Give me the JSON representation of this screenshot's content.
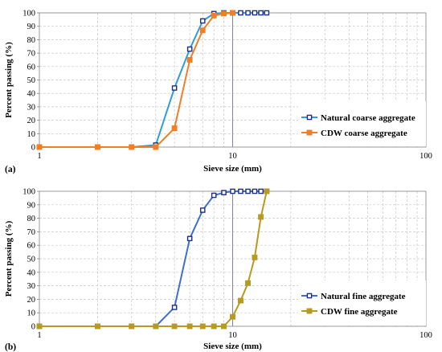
{
  "chart_data": [
    {
      "type": "line",
      "panel_label": "(a)",
      "xlabel": "Sieve size (mm)",
      "ylabel": "Percent passing (%)",
      "xscale": "log",
      "xlim": [
        1,
        100
      ],
      "ylim": [
        0,
        100
      ],
      "x_ticks": [
        "1",
        "10",
        "100"
      ],
      "y_ticks": [
        "0",
        "10",
        "20",
        "30",
        "40",
        "50",
        "60",
        "70",
        "80",
        "90",
        "100"
      ],
      "grid": "dashed",
      "reference_line_x": 10,
      "legend_position": "right",
      "series": [
        {
          "name": "Natural coarse aggregate",
          "color": "#2e9ed6",
          "marker": "hollow-square",
          "marker_color": "#1f2d8a",
          "points": [
            [
              1,
              0
            ],
            [
              2,
              0
            ],
            [
              3,
              0
            ],
            [
              4,
              1.5
            ],
            [
              5,
              44
            ],
            [
              6,
              73
            ],
            [
              7,
              94
            ],
            [
              8,
              99.5
            ],
            [
              9,
              100
            ],
            [
              10,
              100
            ],
            [
              11,
              100
            ],
            [
              12,
              100
            ],
            [
              13,
              100
            ],
            [
              14,
              100
            ],
            [
              15,
              100
            ]
          ]
        },
        {
          "name": "CDW coarse aggregate",
          "color": "#f07f25",
          "marker": "filled-square",
          "marker_color": "#f07f25",
          "points": [
            [
              1,
              0
            ],
            [
              2,
              0
            ],
            [
              3,
              0
            ],
            [
              4,
              0
            ],
            [
              5,
              14
            ],
            [
              6,
              65
            ],
            [
              7,
              87
            ],
            [
              8,
              98
            ],
            [
              9,
              99.5
            ],
            [
              10,
              100
            ]
          ]
        }
      ]
    },
    {
      "type": "line",
      "panel_label": "(b)",
      "xlabel": "Sieve size (mm)",
      "ylabel": "Percent passing (%)",
      "xscale": "log",
      "xlim": [
        1,
        100
      ],
      "ylim": [
        0,
        100
      ],
      "x_ticks": [
        "1",
        "10",
        "100"
      ],
      "y_ticks": [
        "0",
        "10",
        "20",
        "30",
        "40",
        "50",
        "60",
        "70",
        "80",
        "90",
        "100"
      ],
      "grid": "dashed",
      "reference_line_x": 10,
      "legend_position": "right",
      "series": [
        {
          "name": "Natural fine aggregate",
          "color": "#3b6fd0",
          "marker": "hollow-square",
          "marker_color": "#1f2d8a",
          "points": [
            [
              1,
              0
            ],
            [
              2,
              0
            ],
            [
              3,
              0
            ],
            [
              4,
              0
            ],
            [
              5,
              14
            ],
            [
              6,
              65
            ],
            [
              7,
              86
            ],
            [
              8,
              97
            ],
            [
              9,
              99
            ],
            [
              10,
              100
            ],
            [
              11,
              100
            ],
            [
              12,
              100
            ],
            [
              13,
              100
            ],
            [
              14,
              100
            ],
            [
              15,
              100
            ]
          ]
        },
        {
          "name": "CDW fine aggregate",
          "color": "#b89a1e",
          "marker": "filled-square",
          "marker_color": "#b89a1e",
          "points": [
            [
              1,
              0
            ],
            [
              2,
              0
            ],
            [
              3,
              0
            ],
            [
              4,
              0
            ],
            [
              5,
              0
            ],
            [
              6,
              0
            ],
            [
              7,
              0
            ],
            [
              8,
              0
            ],
            [
              9,
              0
            ],
            [
              10,
              7
            ],
            [
              11,
              19
            ],
            [
              12,
              32
            ],
            [
              13,
              51
            ],
            [
              14,
              81
            ],
            [
              15,
              100
            ]
          ]
        }
      ]
    }
  ]
}
